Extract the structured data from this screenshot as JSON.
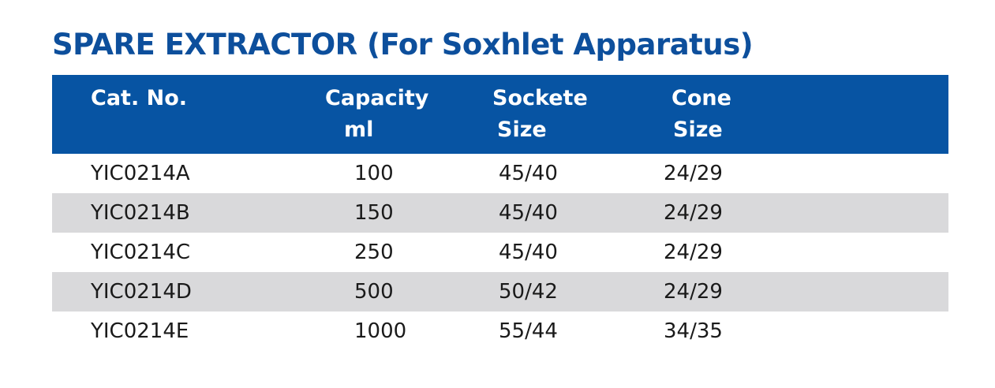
{
  "title": "SPARE EXTRACTOR (For Soxhlet Apparatus)",
  "colors": {
    "title": "#0d4f9c",
    "header_bg": "#0754a3",
    "header_text": "#ffffff",
    "row_shade": "#d9d9db"
  },
  "table": {
    "headers": [
      {
        "line1": "Cat. No.",
        "line2": ""
      },
      {
        "line1": "Capacity",
        "line2": "ml"
      },
      {
        "line1": "Sockete",
        "line2": "Size"
      },
      {
        "line1": "Cone",
        "line2": "Size"
      }
    ],
    "rows": [
      {
        "cat_no": "YIC0214A",
        "capacity": "100",
        "socket": "45/40",
        "cone": "24/29"
      },
      {
        "cat_no": "YIC0214B",
        "capacity": "150",
        "socket": "45/40",
        "cone": "24/29"
      },
      {
        "cat_no": "YIC0214C",
        "capacity": "250",
        "socket": "45/40",
        "cone": "24/29"
      },
      {
        "cat_no": "YIC0214D",
        "capacity": "500",
        "socket": "50/42",
        "cone": "24/29"
      },
      {
        "cat_no": "YIC0214E",
        "capacity": "1000",
        "socket": "55/44",
        "cone": "34/35"
      }
    ]
  }
}
